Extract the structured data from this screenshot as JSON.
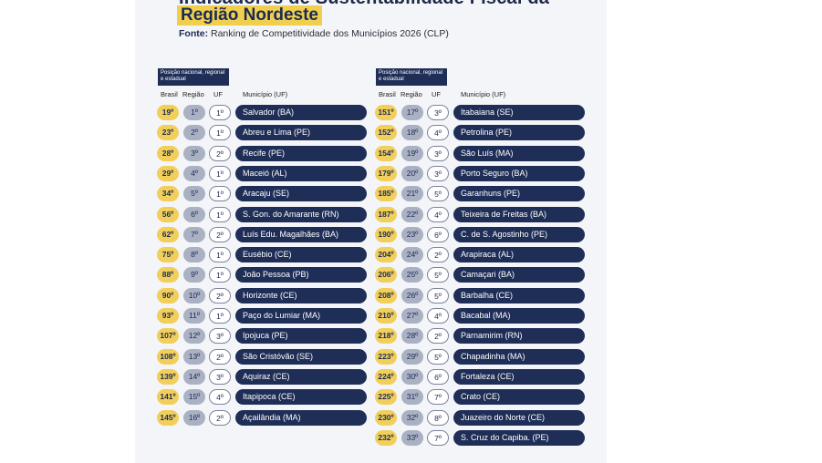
{
  "header": {
    "title_top": "Indicadores de Sustentabilidade Fiscal da",
    "title_main": "Região Nordeste",
    "source_label": "Fonte:",
    "source_text": "Ranking de Competitividade dos Municípios 2026 (CLP)"
  },
  "table_header": {
    "box": "Posição nacional, regional e estadual",
    "brasil": "Brasil",
    "regiao": "Região",
    "uf": "UF",
    "municipio": "Município (UF)"
  },
  "left_rows": [
    {
      "brasil": "19º",
      "regiao": "1º",
      "uf": "1º",
      "municipio": "Salvador (BA)"
    },
    {
      "brasil": "23º",
      "regiao": "2º",
      "uf": "1º",
      "municipio": "Abreu e Lima (PE)"
    },
    {
      "brasil": "28º",
      "regiao": "3º",
      "uf": "2º",
      "municipio": "Recife (PE)"
    },
    {
      "brasil": "29º",
      "regiao": "4º",
      "uf": "1º",
      "municipio": "Maceió (AL)"
    },
    {
      "brasil": "34º",
      "regiao": "5º",
      "uf": "1º",
      "municipio": "Aracaju (SE)"
    },
    {
      "brasil": "56º",
      "regiao": "6º",
      "uf": "1º",
      "municipio": "S. Gon. do Amarante (RN)"
    },
    {
      "brasil": "62º",
      "regiao": "7º",
      "uf": "2º",
      "municipio": "Luís Edu. Magalhães (BA)"
    },
    {
      "brasil": "75º",
      "regiao": "8º",
      "uf": "1º",
      "municipio": "Eusébio (CE)"
    },
    {
      "brasil": "88º",
      "regiao": "9º",
      "uf": "1º",
      "municipio": "João Pessoa (PB)"
    },
    {
      "brasil": "90º",
      "regiao": "10º",
      "uf": "2º",
      "municipio": "Horizonte (CE)"
    },
    {
      "brasil": "93º",
      "regiao": "11º",
      "uf": "1º",
      "municipio": "Paço do Lumiar (MA)"
    },
    {
      "brasil": "107º",
      "regiao": "12º",
      "uf": "3º",
      "municipio": "Ipojuca (PE)"
    },
    {
      "brasil": "108º",
      "regiao": "13º",
      "uf": "2º",
      "municipio": "São Cristóvão (SE)"
    },
    {
      "brasil": "139º",
      "regiao": "14º",
      "uf": "3º",
      "municipio": "Aquiraz (CE)"
    },
    {
      "brasil": "141º",
      "regiao": "15º",
      "uf": "4º",
      "municipio": "Itapipoca (CE)"
    },
    {
      "brasil": "145º",
      "regiao": "16º",
      "uf": "2º",
      "municipio": "Açailândia (MA)"
    }
  ],
  "right_rows": [
    {
      "brasil": "151º",
      "regiao": "17º",
      "uf": "3º",
      "municipio": "Itabaiana (SE)"
    },
    {
      "brasil": "152º",
      "regiao": "18º",
      "uf": "4º",
      "municipio": "Petrolina (PE)"
    },
    {
      "brasil": "154º",
      "regiao": "19º",
      "uf": "3º",
      "municipio": "São Luís (MA)"
    },
    {
      "brasil": "179º",
      "regiao": "20º",
      "uf": "3º",
      "municipio": "Porto Seguro (BA)"
    },
    {
      "brasil": "185º",
      "regiao": "21º",
      "uf": "5º",
      "municipio": "Garanhuns (PE)"
    },
    {
      "brasil": "187º",
      "regiao": "22º",
      "uf": "4º",
      "municipio": "Teixeira de Freitas (BA)"
    },
    {
      "brasil": "190º",
      "regiao": "23º",
      "uf": "6º",
      "municipio": "C. de S. Agostinho (PE)"
    },
    {
      "brasil": "204º",
      "regiao": "24º",
      "uf": "2º",
      "municipio": "Arapiraca (AL)"
    },
    {
      "brasil": "206º",
      "regiao": "25º",
      "uf": "5º",
      "municipio": "Camaçari (BA)"
    },
    {
      "brasil": "208º",
      "regiao": "26º",
      "uf": "5º",
      "municipio": "Barbalha (CE)"
    },
    {
      "brasil": "210º",
      "regiao": "27º",
      "uf": "4º",
      "municipio": "Bacabal (MA)"
    },
    {
      "brasil": "218º",
      "regiao": "28º",
      "uf": "2º",
      "municipio": "Parnamirim (RN)"
    },
    {
      "brasil": "223º",
      "regiao": "29º",
      "uf": "5º",
      "municipio": "Chapadinha (MA)"
    },
    {
      "brasil": "224º",
      "regiao": "30º",
      "uf": "6º",
      "municipio": "Fortaleza (CE)"
    },
    {
      "brasil": "225º",
      "regiao": "31º",
      "uf": "7º",
      "municipio": "Crato (CE)"
    },
    {
      "brasil": "230º",
      "regiao": "32º",
      "uf": "8º",
      "municipio": "Juazeiro do Norte (CE)"
    },
    {
      "brasil": "232º",
      "regiao": "33º",
      "uf": "7º",
      "municipio": "S. Cruz do Capiba. (PE)"
    }
  ],
  "colors": {
    "navy": "#1f2e57",
    "gold": "#f1cf5a",
    "gray": "#aab1c3"
  }
}
